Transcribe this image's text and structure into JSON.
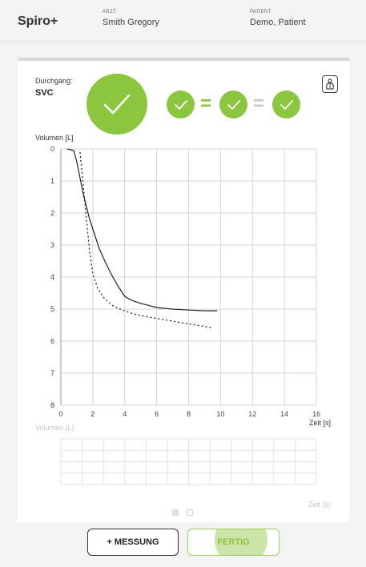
{
  "app": {
    "title": "Spiro+"
  },
  "header": {
    "doctor_label": "ARZT",
    "doctor_name": "Smith Gregory",
    "patient_label": "PATIENT",
    "patient_name": "Demo, Patient"
  },
  "run": {
    "label": "Durchgang:",
    "value": "SVC"
  },
  "colors": {
    "accent": "#8cc63f",
    "accent_light": "#9cd35a",
    "grid": "#d6d6d6"
  },
  "icons": {
    "check": "check-icon",
    "settings": "lung-settings-icon"
  },
  "chart_data": [
    {
      "type": "line",
      "ylabel": "Volumen [L]",
      "xlabel": "Zeit [s]",
      "xlim": [
        0,
        16
      ],
      "ylim": [
        0,
        8
      ],
      "y_inverted": true,
      "x_ticks": [
        0,
        2,
        4,
        6,
        8,
        10,
        12,
        14,
        16
      ],
      "y_ticks": [
        0,
        1,
        2,
        3,
        4,
        5,
        6,
        7,
        8
      ],
      "grid": true,
      "series": [
        {
          "style": "solid",
          "x": [
            0.4,
            0.8,
            1.0,
            1.2,
            1.4,
            1.6,
            1.8,
            2.0,
            2.4,
            2.8,
            3.2,
            3.6,
            4.0,
            4.4,
            5.0,
            6.0,
            7.0,
            8.0,
            9.0,
            9.8
          ],
          "y": [
            0,
            0.05,
            0.4,
            0.9,
            1.4,
            1.8,
            2.2,
            2.5,
            3.1,
            3.55,
            3.95,
            4.3,
            4.6,
            4.72,
            4.82,
            4.95,
            5.0,
            5.03,
            5.05,
            5.05
          ]
        },
        {
          "style": "dotted",
          "x": [
            1.2,
            1.4,
            1.6,
            1.8,
            2.0,
            2.3,
            2.7,
            3.2,
            3.8,
            4.5,
            5.5,
            6.5,
            7.5,
            8.5,
            9.5
          ],
          "y": [
            0.1,
            1.1,
            2.2,
            3.2,
            3.9,
            4.35,
            4.65,
            4.88,
            5.02,
            5.14,
            5.25,
            5.33,
            5.42,
            5.5,
            5.58
          ]
        }
      ]
    },
    {
      "type": "line",
      "ylabel": "Volumen (L)",
      "xlabel": "Zeit (s)",
      "grid": true,
      "series": []
    }
  ],
  "pager": {
    "current": 1,
    "total": 2
  },
  "buttons": {
    "add_measurement": "+ MESSUNG",
    "done": "FERTIG"
  }
}
